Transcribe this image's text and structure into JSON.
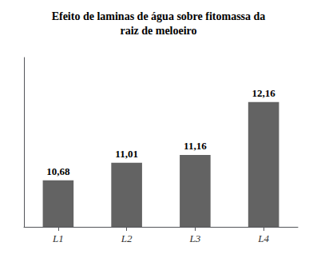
{
  "chart_data": {
    "type": "bar",
    "title": "Efeito de laminas de água sobre fitomassa da\nraiz de meloeiro",
    "categories": [
      "L1",
      "L2",
      "L3",
      "L4"
    ],
    "values": [
      10.68,
      11.01,
      11.16,
      12.16
    ],
    "value_labels": [
      "10,68",
      "11,01",
      "11,16",
      "12,16"
    ],
    "data_labels": true,
    "color": "#636363",
    "ylim": [
      9.8,
      13.0
    ],
    "tick_labels": "x",
    "grid": false
  }
}
